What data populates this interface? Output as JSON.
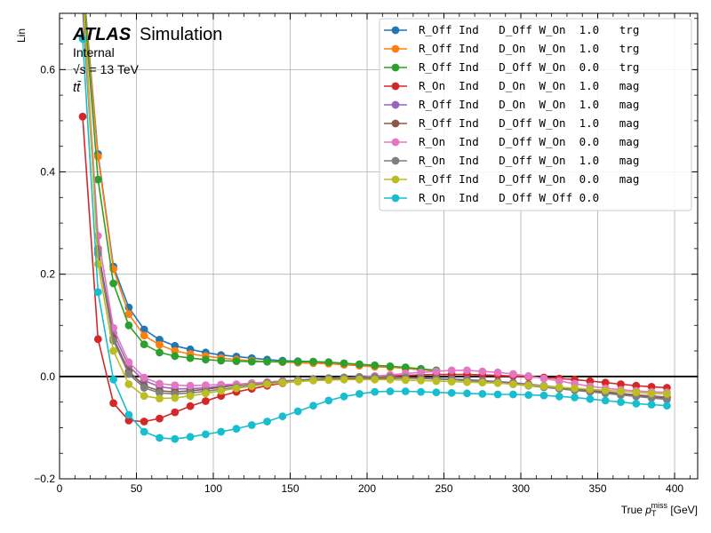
{
  "chart_data": {
    "type": "line",
    "title": "",
    "xlabel_main": "True ",
    "xlabel_var": "p",
    "xlabel_sub": "T",
    "xlabel_sup": "miss",
    "xlabel_unit": " [GeV]",
    "ylabel": "Lin",
    "xlim": [
      0,
      415
    ],
    "ylim": [
      -0.2,
      0.71
    ],
    "xticks": [
      0,
      50,
      100,
      150,
      200,
      250,
      300,
      350,
      400
    ],
    "yticks": [
      -0.2,
      0.0,
      0.2,
      0.4,
      0.6
    ],
    "ytick_labels": [
      "−0.2",
      "0.0",
      "0.2",
      "0.4",
      "0.6"
    ],
    "grid": true,
    "legend_position": "top-right",
    "reference_line_y": 0,
    "annotations": {
      "atlas": "ATLAS",
      "simulation": "Simulation",
      "internal": "Internal",
      "energy": "√s = 13 TeV",
      "process": "tt̄"
    },
    "series": [
      {
        "name": "R_Off Ind   D_Off W_On  1.0   trg",
        "color": "#1f77b4",
        "x": [
          15,
          25,
          35,
          45,
          55,
          65,
          75,
          85,
          95,
          105,
          115,
          125,
          135,
          145,
          155,
          165,
          175,
          185,
          195,
          205,
          215,
          225,
          235,
          245
        ],
        "y": [
          0.78,
          0.435,
          0.215,
          0.135,
          0.092,
          0.072,
          0.06,
          0.053,
          0.047,
          0.042,
          0.039,
          0.036,
          0.033,
          0.031,
          0.03,
          0.029,
          0.027,
          0.025,
          0.023,
          0.021,
          0.019,
          0.016,
          0.013,
          0.011
        ]
      },
      {
        "name": "R_Off Ind   D_On  W_On  1.0   trg",
        "color": "#ff7f0e",
        "x": [
          15,
          25,
          35,
          45,
          55,
          65,
          75,
          85,
          95,
          105,
          115,
          125,
          135,
          145,
          155,
          165,
          175,
          185,
          195,
          205,
          215,
          225,
          235,
          245
        ],
        "y": [
          0.77,
          0.43,
          0.21,
          0.122,
          0.08,
          0.062,
          0.05,
          0.044,
          0.04,
          0.036,
          0.033,
          0.031,
          0.029,
          0.028,
          0.027,
          0.026,
          0.025,
          0.023,
          0.021,
          0.019,
          0.018,
          0.016,
          0.013,
          0.011
        ]
      },
      {
        "name": "R_Off Ind   D_Off W_On  0.0   trg",
        "color": "#2ca02c",
        "x": [
          15,
          25,
          35,
          45,
          55,
          65,
          75,
          85,
          95,
          105,
          115,
          125,
          135,
          145,
          155,
          165,
          175,
          185,
          195,
          205,
          215,
          225,
          235,
          245
        ],
        "y": [
          0.76,
          0.385,
          0.182,
          0.1,
          0.063,
          0.047,
          0.04,
          0.036,
          0.033,
          0.031,
          0.03,
          0.029,
          0.029,
          0.029,
          0.029,
          0.029,
          0.028,
          0.026,
          0.024,
          0.022,
          0.02,
          0.018,
          0.015,
          0.012
        ]
      },
      {
        "name": "R_On  Ind   D_On  W_On  1.0   mag",
        "color": "#d62728",
        "x": [
          15,
          25,
          35,
          45,
          55,
          65,
          75,
          85,
          95,
          105,
          115,
          125,
          135,
          145,
          155,
          165,
          175,
          185,
          195,
          205,
          215,
          225,
          235,
          245,
          255,
          265,
          275,
          285,
          295,
          305,
          315,
          325,
          335,
          345,
          355,
          365,
          375,
          385,
          395
        ],
        "y": [
          0.508,
          0.073,
          -0.052,
          -0.086,
          -0.088,
          -0.082,
          -0.07,
          -0.058,
          -0.048,
          -0.038,
          -0.03,
          -0.024,
          -0.018,
          -0.013,
          -0.009,
          -0.006,
          -0.004,
          -0.002,
          -0.001,
          0.0,
          0.001,
          0.002,
          0.003,
          0.004,
          0.004,
          0.004,
          0.003,
          0.002,
          0.001,
          -0.001,
          -0.002,
          -0.004,
          -0.006,
          -0.009,
          -0.012,
          -0.015,
          -0.018,
          -0.02,
          -0.022
        ]
      },
      {
        "name": "R_Off Ind   D_On  W_On  1.0   mag",
        "color": "#9467bd",
        "x": [
          15,
          25,
          35,
          45,
          55,
          65,
          75,
          85,
          95,
          105,
          115,
          125,
          135,
          145,
          155,
          165,
          175,
          185,
          195,
          205,
          215,
          225,
          235,
          245,
          255,
          265,
          275,
          285,
          295,
          305,
          315,
          325,
          335,
          345,
          355,
          365,
          375,
          385,
          395
        ],
        "y": [
          0.72,
          0.245,
          0.085,
          0.02,
          -0.008,
          -0.02,
          -0.024,
          -0.024,
          -0.022,
          -0.019,
          -0.016,
          -0.013,
          -0.011,
          -0.009,
          -0.007,
          -0.006,
          -0.005,
          -0.004,
          -0.003,
          -0.003,
          -0.003,
          -0.003,
          -0.003,
          -0.004,
          -0.005,
          -0.006,
          -0.008,
          -0.01,
          -0.012,
          -0.015,
          -0.018,
          -0.021,
          -0.024,
          -0.027,
          -0.03,
          -0.033,
          -0.036,
          -0.038,
          -0.04
        ]
      },
      {
        "name": "R_Off Ind   D_Off W_On  1.0   mag",
        "color": "#8c564b",
        "x": [
          15,
          25,
          35,
          45,
          55,
          65,
          75,
          85,
          95,
          105,
          115,
          125,
          135,
          145,
          155,
          165,
          175,
          185,
          195,
          205,
          215,
          225,
          235,
          245,
          255,
          265,
          275,
          285,
          295,
          305,
          315,
          325,
          335,
          345,
          355,
          365,
          375,
          385,
          395
        ],
        "y": [
          0.73,
          0.25,
          0.075,
          0.01,
          -0.018,
          -0.028,
          -0.03,
          -0.028,
          -0.025,
          -0.021,
          -0.017,
          -0.014,
          -0.011,
          -0.009,
          -0.007,
          -0.006,
          -0.005,
          -0.004,
          -0.003,
          -0.003,
          -0.003,
          -0.003,
          -0.004,
          -0.005,
          -0.006,
          -0.008,
          -0.01,
          -0.012,
          -0.014,
          -0.016,
          -0.019,
          -0.022,
          -0.025,
          -0.028,
          -0.031,
          -0.034,
          -0.037,
          -0.04,
          -0.042
        ]
      },
      {
        "name": "R_On  Ind   D_Off W_On  0.0   mag",
        "color": "#e377c2",
        "x": [
          15,
          25,
          35,
          45,
          55,
          65,
          75,
          85,
          95,
          105,
          115,
          125,
          135,
          145,
          155,
          165,
          175,
          185,
          195,
          205,
          215,
          225,
          235,
          245,
          255,
          265,
          275,
          285,
          295,
          305,
          315,
          325,
          335,
          345,
          355,
          365,
          375,
          385,
          395
        ],
        "y": [
          0.75,
          0.275,
          0.095,
          0.028,
          -0.002,
          -0.014,
          -0.017,
          -0.018,
          -0.017,
          -0.016,
          -0.015,
          -0.013,
          -0.011,
          -0.009,
          -0.007,
          -0.005,
          -0.003,
          -0.002,
          -0.001,
          0.001,
          0.003,
          0.006,
          0.008,
          0.01,
          0.012,
          0.012,
          0.01,
          0.008,
          0.005,
          0.001,
          -0.004,
          -0.009,
          -0.014,
          -0.019,
          -0.023,
          -0.026,
          -0.028,
          -0.03,
          -0.031
        ]
      },
      {
        "name": "R_On  Ind   D_Off W_On  1.0   mag",
        "color": "#7f7f7f",
        "x": [
          15,
          25,
          35,
          45,
          55,
          65,
          75,
          85,
          95,
          105,
          115,
          125,
          135,
          145,
          155,
          165,
          175,
          185,
          195,
          205,
          215,
          225,
          235,
          245,
          255,
          265,
          275,
          285,
          295,
          305,
          315,
          325,
          335,
          345,
          355,
          365,
          375,
          385,
          395
        ],
        "y": [
          0.74,
          0.24,
          0.07,
          0.005,
          -0.022,
          -0.032,
          -0.034,
          -0.032,
          -0.029,
          -0.025,
          -0.021,
          -0.017,
          -0.013,
          -0.01,
          -0.007,
          -0.005,
          -0.003,
          -0.002,
          -0.001,
          -0.001,
          -0.001,
          -0.002,
          -0.003,
          -0.004,
          -0.006,
          -0.008,
          -0.01,
          -0.012,
          -0.015,
          -0.018,
          -0.021,
          -0.024,
          -0.027,
          -0.03,
          -0.033,
          -0.036,
          -0.039,
          -0.042,
          -0.045
        ]
      },
      {
        "name": "R_Off Ind   D_Off W_On  0.0   mag",
        "color": "#bcbd22",
        "x": [
          15,
          25,
          35,
          45,
          55,
          65,
          75,
          85,
          95,
          105,
          115,
          125,
          135,
          145,
          155,
          165,
          175,
          185,
          195,
          205,
          215,
          225,
          235,
          245,
          255,
          265,
          275,
          285,
          295,
          305,
          315,
          325,
          335,
          345,
          355,
          365,
          375,
          385,
          395
        ],
        "y": [
          0.76,
          0.22,
          0.05,
          -0.015,
          -0.038,
          -0.043,
          -0.042,
          -0.038,
          -0.033,
          -0.028,
          -0.023,
          -0.019,
          -0.015,
          -0.012,
          -0.01,
          -0.008,
          -0.007,
          -0.006,
          -0.006,
          -0.006,
          -0.006,
          -0.007,
          -0.008,
          -0.009,
          -0.01,
          -0.011,
          -0.012,
          -0.013,
          -0.015,
          -0.017,
          -0.019,
          -0.021,
          -0.023,
          -0.025,
          -0.027,
          -0.029,
          -0.031,
          -0.033,
          -0.034
        ]
      },
      {
        "name": "R_On  Ind   D_Off W_Off 0.0",
        "color": "#17becf",
        "x": [
          15,
          25,
          35,
          45,
          55,
          65,
          75,
          85,
          95,
          105,
          115,
          125,
          135,
          145,
          155,
          165,
          175,
          185,
          195,
          205,
          215,
          225,
          235,
          245,
          255,
          265,
          275,
          285,
          295,
          305,
          315,
          325,
          335,
          345,
          355,
          365,
          375,
          385,
          395
        ],
        "y": [
          0.66,
          0.165,
          -0.006,
          -0.075,
          -0.108,
          -0.12,
          -0.122,
          -0.118,
          -0.113,
          -0.108,
          -0.102,
          -0.095,
          -0.088,
          -0.078,
          -0.068,
          -0.057,
          -0.047,
          -0.039,
          -0.034,
          -0.03,
          -0.029,
          -0.029,
          -0.03,
          -0.031,
          -0.032,
          -0.033,
          -0.034,
          -0.035,
          -0.035,
          -0.036,
          -0.037,
          -0.039,
          -0.041,
          -0.044,
          -0.047,
          -0.05,
          -0.053,
          -0.055,
          -0.057
        ]
      }
    ]
  }
}
